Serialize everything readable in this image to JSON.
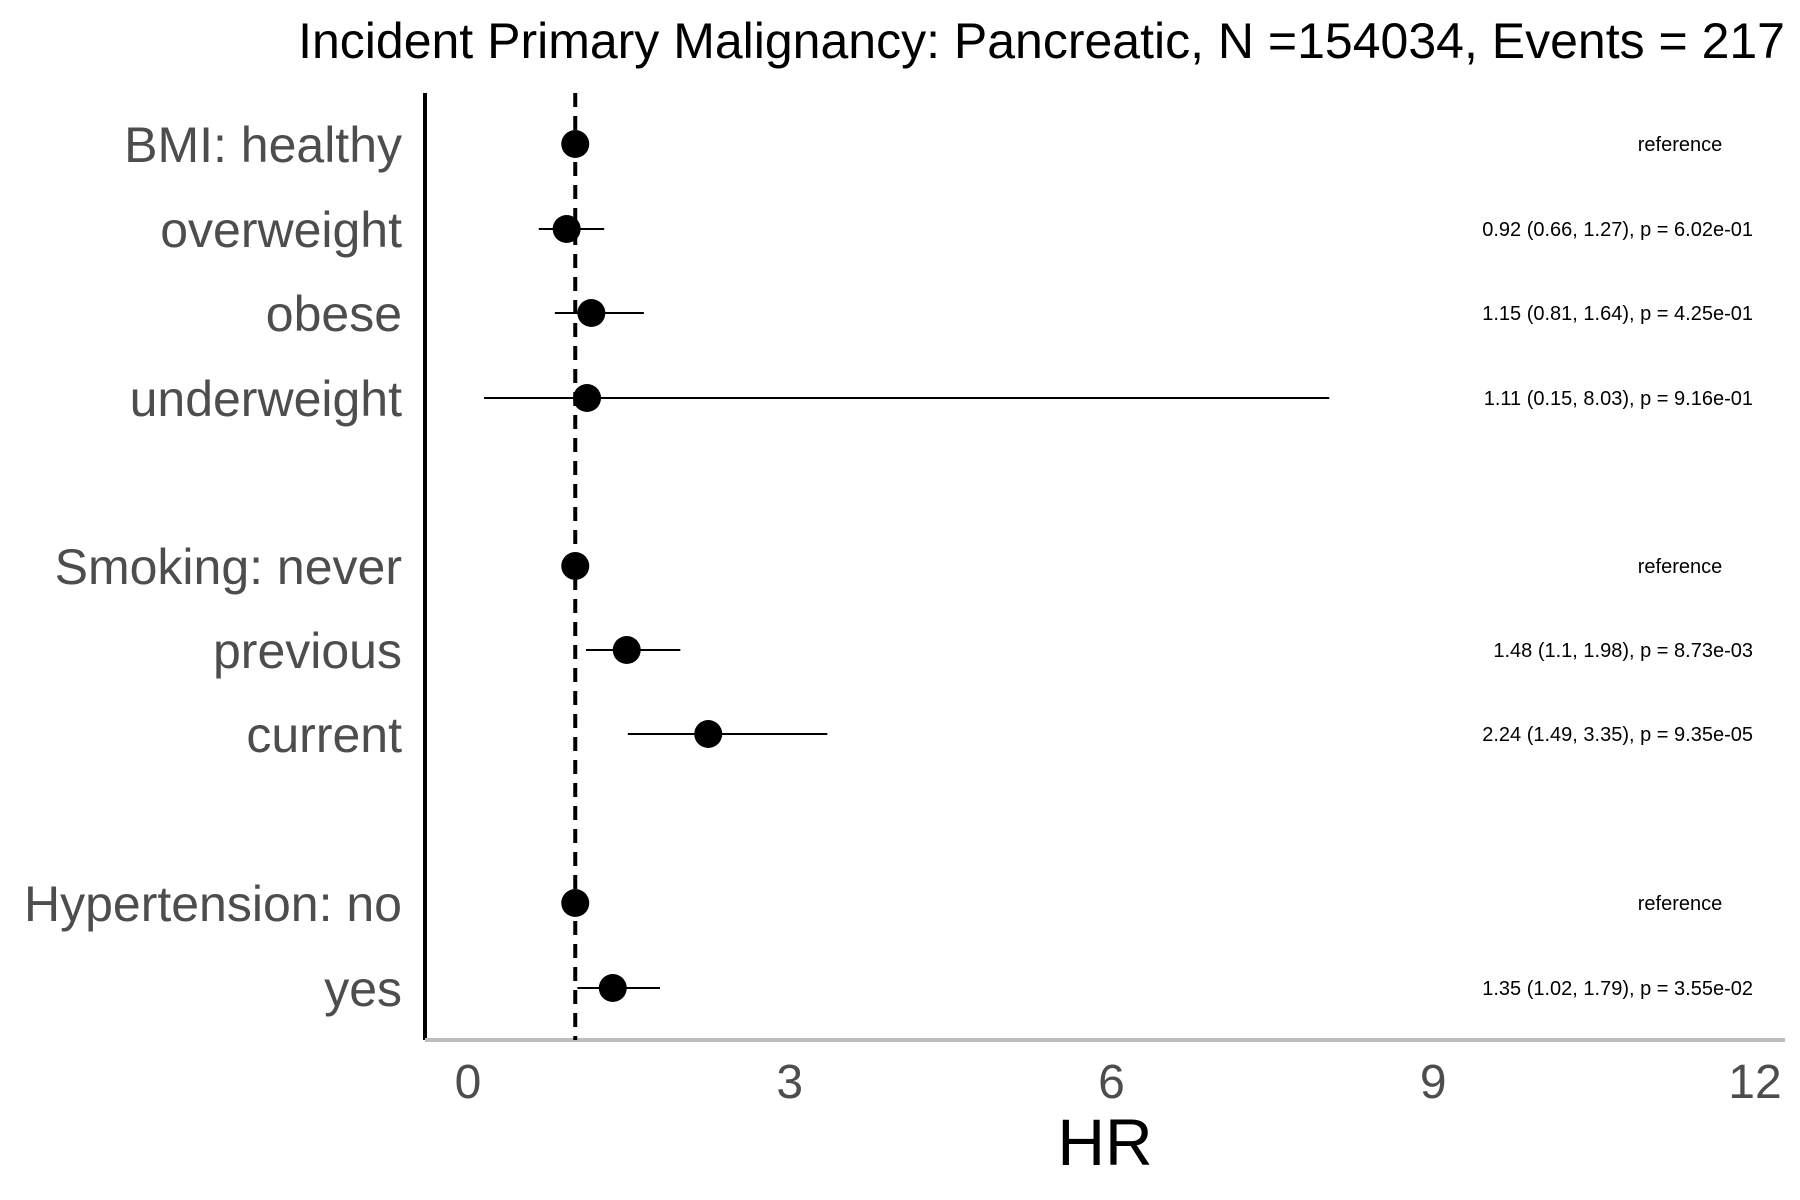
{
  "chart_data": {
    "type": "forest",
    "title": "Incident Primary Malignancy: Pancreatic, N =154034, Events = 217",
    "xlabel": "HR",
    "ylabel": "",
    "xlim": [
      -0.4,
      12.3
    ],
    "xticks": [
      0,
      3,
      6,
      9,
      12
    ],
    "xtick_labels": [
      "0",
      "3",
      "6",
      "9",
      "12"
    ],
    "reference_line": 1,
    "rows": [
      {
        "label": "BMI: healthy",
        "hr": 1.0,
        "lower": null,
        "upper": null,
        "annotation": "reference"
      },
      {
        "label": "overweight",
        "hr": 0.92,
        "lower": 0.66,
        "upper": 1.27,
        "annotation": "0.92 (0.66, 1.27), p = 6.02e-01"
      },
      {
        "label": "obese",
        "hr": 1.15,
        "lower": 0.81,
        "upper": 1.64,
        "annotation": "1.15 (0.81, 1.64), p = 4.25e-01"
      },
      {
        "label": "underweight",
        "hr": 1.11,
        "lower": 0.15,
        "upper": 8.03,
        "annotation": "1.11 (0.15, 8.03), p = 9.16e-01"
      },
      {
        "label": "Smoking: never",
        "hr": 1.0,
        "lower": null,
        "upper": null,
        "annotation": "reference"
      },
      {
        "label": "previous",
        "hr": 1.48,
        "lower": 1.1,
        "upper": 1.98,
        "annotation": "1.48 (1.1, 1.98), p = 8.73e-03"
      },
      {
        "label": "current",
        "hr": 2.24,
        "lower": 1.49,
        "upper": 3.35,
        "annotation": "2.24 (1.49, 3.35), p = 9.35e-05"
      },
      {
        "label": "Hypertension: no",
        "hr": 1.0,
        "lower": null,
        "upper": null,
        "annotation": "reference"
      },
      {
        "label": "yes",
        "hr": 1.35,
        "lower": 1.02,
        "upper": 1.79,
        "annotation": "1.35 (1.02, 1.79), p = 3.55e-02"
      }
    ]
  }
}
